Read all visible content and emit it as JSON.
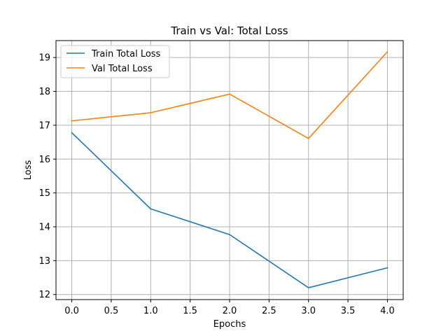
{
  "chart_data": {
    "type": "line",
    "title": "Train vs Val: Total Loss",
    "xlabel": "Epochs",
    "ylabel": "Loss",
    "x": [
      0,
      1,
      2,
      3,
      4
    ],
    "xlim": [
      -0.2,
      4.2
    ],
    "ylim": [
      11.85,
      19.5
    ],
    "xticks": [
      0.0,
      0.5,
      1.0,
      1.5,
      2.0,
      2.5,
      3.0,
      3.5,
      4.0
    ],
    "xtick_labels": [
      "0.0",
      "0.5",
      "1.0",
      "1.5",
      "2.0",
      "2.5",
      "3.0",
      "3.5",
      "4.0"
    ],
    "yticks": [
      12,
      13,
      14,
      15,
      16,
      17,
      18,
      19
    ],
    "ytick_labels": [
      "12",
      "13",
      "14",
      "15",
      "16",
      "17",
      "18",
      "19"
    ],
    "grid": true,
    "legend_position": "upper-left",
    "series": [
      {
        "name": "Train Total Loss",
        "color": "#1f77b4",
        "values": [
          16.78,
          14.53,
          13.77,
          12.2,
          12.79
        ]
      },
      {
        "name": "Val Total Loss",
        "color": "#ff7f0e",
        "values": [
          17.13,
          17.37,
          17.92,
          16.61,
          19.17
        ]
      }
    ]
  }
}
